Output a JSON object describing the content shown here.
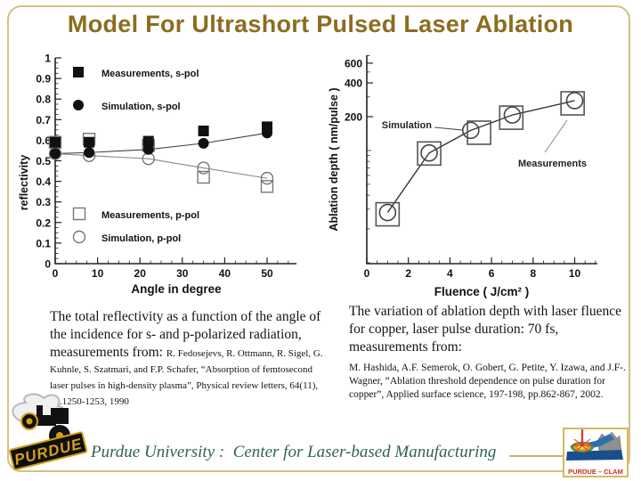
{
  "slide": {
    "title": "Model For Ultrashort Pulsed Laser Ablation",
    "captions": {
      "left_main": "The total reflectivity as a function of the angle of the incidence for s- and p-polarized radiation, measurements from: ",
      "left_cite": "R. Fedosejevs, R. Ottmann, R. Sigel, G. Kuhnle, S. Szatmari, and F.P. Schafer, “Absorption of femtosecond laser pulses in high-density plasma”, Physical review letters, 64(11), pp.1250-1253, 1990",
      "right_main": "The variation of ablation depth with laser fluence for copper, laser pulse duration: 70 fs, measurements from:",
      "right_cite": "M. Hashida, A.F. Semerok, O. Gobert, G. Petite, Y. Izawa, and J.F-. Wagner, “Ablation threshold dependence on pulse duration for copper”, Applied surface science, 197-198, pp.862-867, 2002."
    },
    "footer": {
      "affiliation": "Purdue University :  Center for Laser-based Manufacturing",
      "left_logo": "purdue-boilermaker-special-mascot",
      "left_logo_text": "PURDUE",
      "right_logo_label": "PURDUE – CLAM"
    },
    "colors": {
      "title": "#8c6d1f",
      "border": "#d2c283",
      "footer_text": "#2f6253",
      "clam_red": "#cc2a2a",
      "ink": "#1a1a1a"
    }
  },
  "chart_data": [
    {
      "id": "reflectivity",
      "type": "scatter",
      "title": "",
      "xlabel": "Angle in degree",
      "ylabel": "reflectivity",
      "xlim": [
        0,
        57
      ],
      "ylim": [
        0,
        1
      ],
      "grid": false,
      "legend_position": "inside",
      "x_ticks": [
        0,
        10,
        20,
        30,
        40,
        50
      ],
      "y_ticks": [
        0,
        0.1,
        0.2,
        0.3,
        0.4,
        0.5,
        0.6,
        0.7,
        0.8,
        0.9,
        1
      ],
      "y_tick_labels": [
        "0",
        "0.1",
        "0.2",
        "0.3",
        "0.4",
        "0.5",
        "0.6",
        "0.7",
        "0.8",
        "0.9",
        "1"
      ],
      "x": [
        0,
        8,
        22,
        35,
        50
      ],
      "series": [
        {
          "name": "Measurements, s-pol",
          "marker": "filled-square",
          "line": false,
          "values": [
            0.59,
            0.59,
            0.595,
            0.645,
            0.665
          ]
        },
        {
          "name": "Simulation, s-pol",
          "marker": "filled-circle",
          "line": true,
          "values": [
            0.535,
            0.54,
            0.555,
            0.585,
            0.635
          ]
        },
        {
          "name": "Measurements, p-pol",
          "marker": "open-square",
          "line": false,
          "values": [
            0.59,
            0.605,
            0.575,
            0.42,
            0.375
          ]
        },
        {
          "name": "Simulation, p-pol",
          "marker": "open-circle",
          "line": true,
          "values": [
            0.535,
            0.525,
            0.51,
            0.465,
            0.415
          ]
        }
      ]
    },
    {
      "id": "ablation-depth",
      "type": "scatter",
      "title": "",
      "xlabel": "Fluence ( J/cm² )",
      "ylabel": "Ablation depth ( nm/pulse )",
      "xlim": [
        0,
        11.1
      ],
      "ylim": [
        10,
        700
      ],
      "yscale": "log",
      "grid": false,
      "x_ticks": [
        0,
        2,
        4,
        6,
        8,
        10
      ],
      "y_ticks_labeled": [
        600,
        400,
        200
      ],
      "y_ticks_minor": [
        10,
        20,
        30,
        40,
        50,
        60,
        70,
        80,
        90,
        100,
        300,
        500,
        700
      ],
      "series": [
        {
          "name": "Simulation",
          "marker": "open-circle",
          "line": true,
          "x": [
            1,
            3,
            5,
            7,
            10
          ],
          "values": [
            28,
            95,
            151,
            207,
            278
          ]
        },
        {
          "name": "Measurements",
          "marker": "open-square-large",
          "line": false,
          "x": [
            1,
            3,
            5.4,
            6.95,
            9.9
          ],
          "values": [
            27,
            94,
            144,
            196,
            263
          ]
        }
      ],
      "annotations": [
        {
          "label": "Simulation"
        },
        {
          "label": "Measurements"
        }
      ]
    }
  ]
}
